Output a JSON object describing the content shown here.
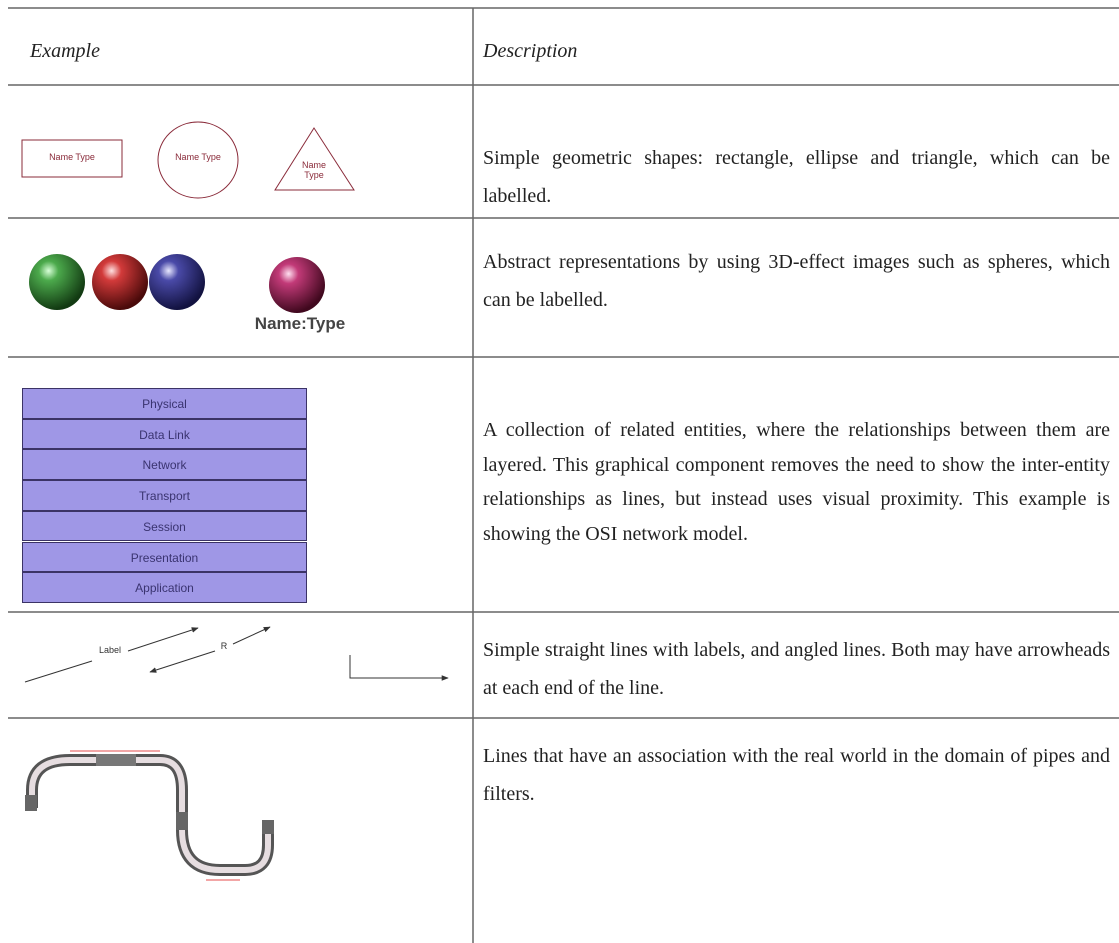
{
  "header": {
    "example": "Example",
    "description": "Description"
  },
  "rows": [
    {
      "example": {
        "labels": [
          "Name Type",
          "Name Type",
          "Name Type"
        ]
      },
      "description": "Simple geometric shapes: rectangle, ellipse and triangle, which can be labelled."
    },
    {
      "example": {
        "label": "Name:Type"
      },
      "description": "Abstract representations by using 3D-effect images such as spheres, which can be labelled."
    },
    {
      "example": {
        "layers": [
          "Physical",
          "Data Link",
          "Network",
          "Transport",
          "Session",
          "Presentation",
          "Application"
        ]
      },
      "description": "A collection of related entities, where the relationships between them are layered.  This graphical component removes the need to show the inter-entity relationships as lines, but instead uses visual proximity.  This example is showing the OSI network model."
    },
    {
      "example": {
        "labels": [
          "Label",
          "R"
        ]
      },
      "description": "Simple straight lines with labels, and angled lines.  Both may have arrowheads at each end of the line."
    },
    {
      "description": "Lines that have an association with the real world in the domain of pipes and filters."
    }
  ]
}
